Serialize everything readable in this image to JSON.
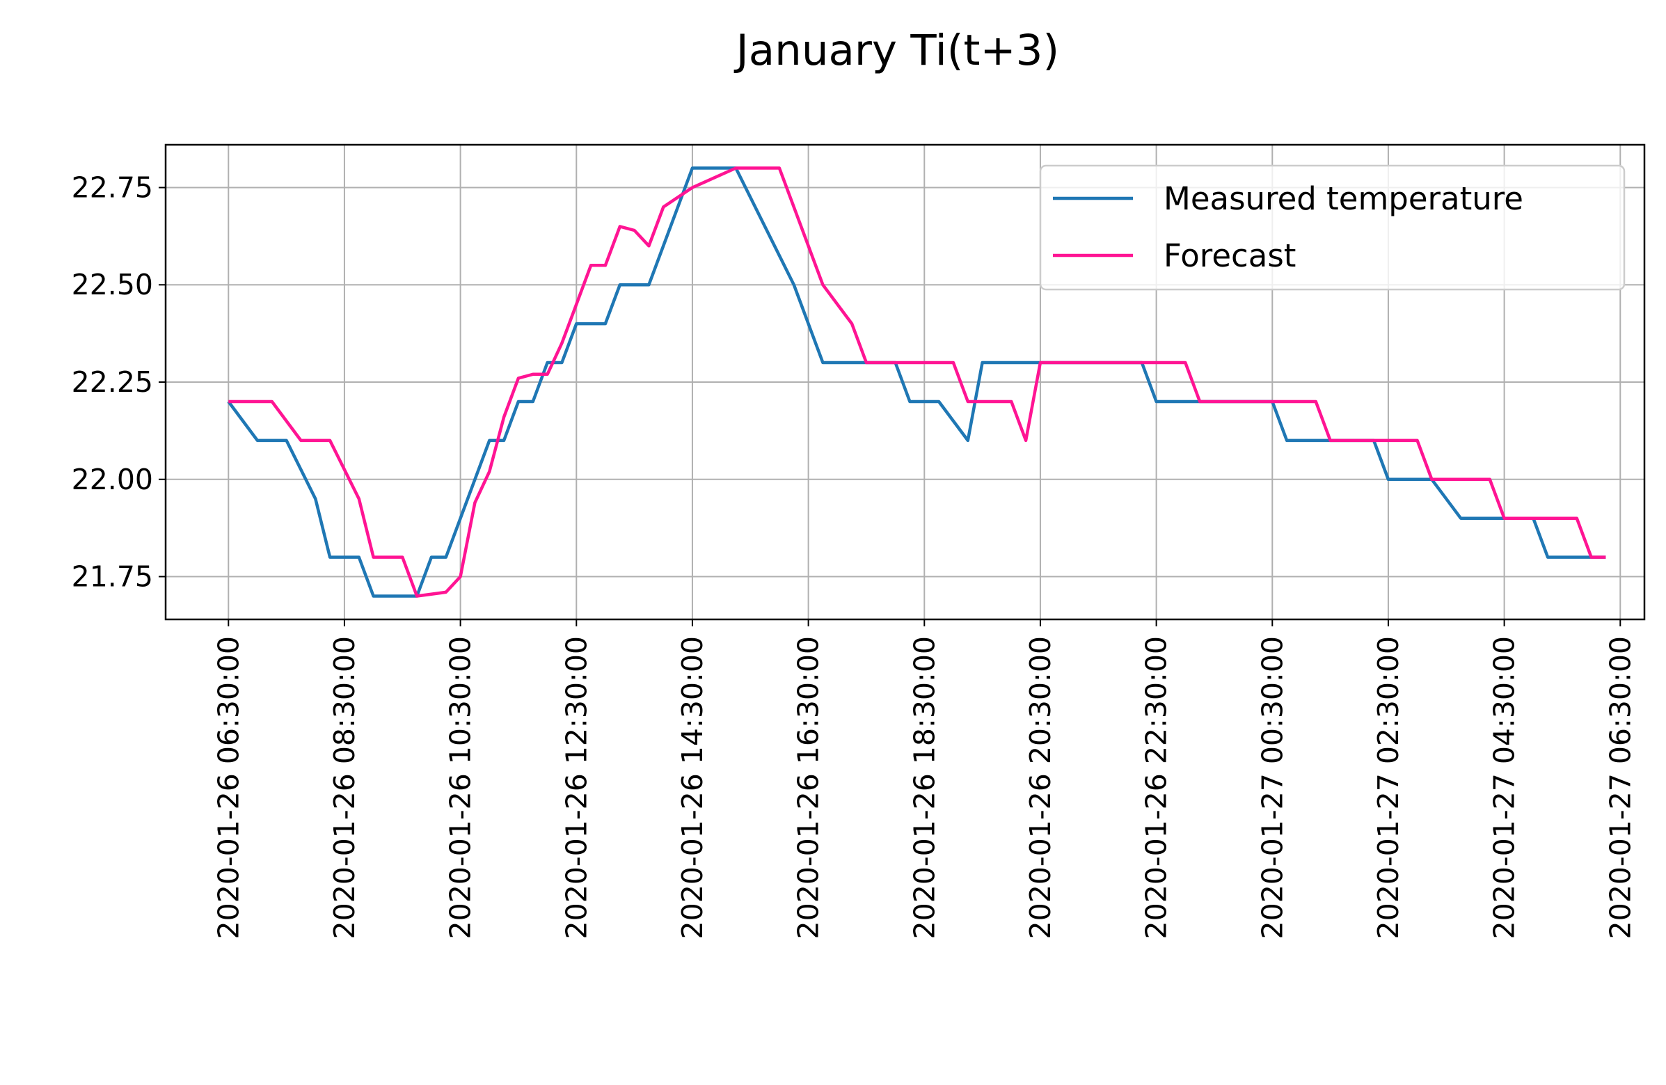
{
  "chart_data": {
    "type": "line",
    "title": "January Ti(t+3)",
    "xlabel": "",
    "ylabel": "",
    "ylim": [
      21.64,
      22.86
    ],
    "xlim": [
      "2020-01-26 05:25:00",
      "2020-01-27 06:55:00"
    ],
    "grid": true,
    "legend_position": "upper right",
    "y_ticks": [
      21.75,
      22.0,
      22.25,
      22.5,
      22.75
    ],
    "y_tick_labels": [
      "21.75",
      "22.00",
      "22.25",
      "22.50",
      "22.75"
    ],
    "x_ticks": [
      "2020-01-26 06:30:00",
      "2020-01-26 08:30:00",
      "2020-01-26 10:30:00",
      "2020-01-26 12:30:00",
      "2020-01-26 14:30:00",
      "2020-01-26 16:30:00",
      "2020-01-26 18:30:00",
      "2020-01-26 20:30:00",
      "2020-01-26 22:30:00",
      "2020-01-27 00:30:00",
      "2020-01-27 02:30:00",
      "2020-01-27 04:30:00",
      "2020-01-27 06:30:00"
    ],
    "series": [
      {
        "name": "Measured temperature",
        "color": "#1f77b4",
        "points": [
          [
            "2020-01-26 06:30:00",
            22.2
          ],
          [
            "2020-01-26 07:00:00",
            22.1
          ],
          [
            "2020-01-26 07:30:00",
            22.1
          ],
          [
            "2020-01-26 08:00:00",
            21.95
          ],
          [
            "2020-01-26 08:15:00",
            21.8
          ],
          [
            "2020-01-26 08:45:00",
            21.8
          ],
          [
            "2020-01-26 09:00:00",
            21.7
          ],
          [
            "2020-01-26 09:30:00",
            21.7
          ],
          [
            "2020-01-26 09:45:00",
            21.7
          ],
          [
            "2020-01-26 10:00:00",
            21.8
          ],
          [
            "2020-01-26 10:15:00",
            21.8
          ],
          [
            "2020-01-26 11:00:00",
            22.1
          ],
          [
            "2020-01-26 11:15:00",
            22.1
          ],
          [
            "2020-01-26 11:30:00",
            22.2
          ],
          [
            "2020-01-26 11:45:00",
            22.2
          ],
          [
            "2020-01-26 12:00:00",
            22.3
          ],
          [
            "2020-01-26 12:15:00",
            22.3
          ],
          [
            "2020-01-26 12:30:00",
            22.4
          ],
          [
            "2020-01-26 12:45:00",
            22.4
          ],
          [
            "2020-01-26 13:00:00",
            22.4
          ],
          [
            "2020-01-26 13:15:00",
            22.5
          ],
          [
            "2020-01-26 13:45:00",
            22.5
          ],
          [
            "2020-01-26 14:30:00",
            22.8
          ],
          [
            "2020-01-26 15:15:00",
            22.8
          ],
          [
            "2020-01-26 15:45:00",
            22.65
          ],
          [
            "2020-01-26 16:15:00",
            22.5
          ],
          [
            "2020-01-26 16:30:00",
            22.4
          ],
          [
            "2020-01-26 16:45:00",
            22.3
          ],
          [
            "2020-01-26 17:30:00",
            22.3
          ],
          [
            "2020-01-26 18:00:00",
            22.3
          ],
          [
            "2020-01-26 18:15:00",
            22.2
          ],
          [
            "2020-01-26 18:45:00",
            22.2
          ],
          [
            "2020-01-26 19:15:00",
            22.1
          ],
          [
            "2020-01-26 19:30:00",
            22.3
          ],
          [
            "2020-01-26 22:15:00",
            22.3
          ],
          [
            "2020-01-26 22:30:00",
            22.2
          ],
          [
            "2020-01-27 00:30:00",
            22.2
          ],
          [
            "2020-01-27 00:45:00",
            22.1
          ],
          [
            "2020-01-27 01:15:00",
            22.1
          ],
          [
            "2020-01-27 02:15:00",
            22.1
          ],
          [
            "2020-01-27 02:30:00",
            22.0
          ],
          [
            "2020-01-27 03:15:00",
            22.0
          ],
          [
            "2020-01-27 03:45:00",
            21.9
          ],
          [
            "2020-01-27 04:15:00",
            21.9
          ],
          [
            "2020-01-27 05:00:00",
            21.9
          ],
          [
            "2020-01-27 05:15:00",
            21.8
          ],
          [
            "2020-01-27 06:15:00",
            21.8
          ]
        ]
      },
      {
        "name": "Forecast",
        "color": "#ff1493",
        "points": [
          [
            "2020-01-26 06:30:00",
            22.2
          ],
          [
            "2020-01-26 07:15:00",
            22.2
          ],
          [
            "2020-01-26 07:45:00",
            22.1
          ],
          [
            "2020-01-26 08:15:00",
            22.1
          ],
          [
            "2020-01-26 08:45:00",
            21.95
          ],
          [
            "2020-01-26 09:00:00",
            21.8
          ],
          [
            "2020-01-26 09:30:00",
            21.8
          ],
          [
            "2020-01-26 09:45:00",
            21.7
          ],
          [
            "2020-01-26 10:15:00",
            21.71
          ],
          [
            "2020-01-26 10:30:00",
            21.75
          ],
          [
            "2020-01-26 10:45:00",
            21.94
          ],
          [
            "2020-01-26 11:00:00",
            22.02
          ],
          [
            "2020-01-26 11:15:00",
            22.16
          ],
          [
            "2020-01-26 11:30:00",
            22.26
          ],
          [
            "2020-01-26 11:45:00",
            22.27
          ],
          [
            "2020-01-26 12:00:00",
            22.27
          ],
          [
            "2020-01-26 12:15:00",
            22.35
          ],
          [
            "2020-01-26 12:30:00",
            22.45
          ],
          [
            "2020-01-26 12:45:00",
            22.55
          ],
          [
            "2020-01-26 13:00:00",
            22.55
          ],
          [
            "2020-01-26 13:15:00",
            22.65
          ],
          [
            "2020-01-26 13:30:00",
            22.64
          ],
          [
            "2020-01-26 13:45:00",
            22.6
          ],
          [
            "2020-01-26 14:00:00",
            22.7
          ],
          [
            "2020-01-26 14:30:00",
            22.75
          ],
          [
            "2020-01-26 15:15:00",
            22.8
          ],
          [
            "2020-01-26 16:00:00",
            22.8
          ],
          [
            "2020-01-26 16:30:00",
            22.6
          ],
          [
            "2020-01-26 16:45:00",
            22.5
          ],
          [
            "2020-01-26 17:15:00",
            22.4
          ],
          [
            "2020-01-26 17:30:00",
            22.3
          ],
          [
            "2020-01-26 19:00:00",
            22.3
          ],
          [
            "2020-01-26 19:15:00",
            22.2
          ],
          [
            "2020-01-26 20:00:00",
            22.2
          ],
          [
            "2020-01-26 20:15:00",
            22.1
          ],
          [
            "2020-01-26 20:30:00",
            22.3
          ],
          [
            "2020-01-26 23:00:00",
            22.3
          ],
          [
            "2020-01-26 23:15:00",
            22.2
          ],
          [
            "2020-01-27 01:15:00",
            22.2
          ],
          [
            "2020-01-27 01:30:00",
            22.1
          ],
          [
            "2020-01-27 03:00:00",
            22.1
          ],
          [
            "2020-01-27 03:15:00",
            22.0
          ],
          [
            "2020-01-27 04:15:00",
            22.0
          ],
          [
            "2020-01-27 04:30:00",
            21.9
          ],
          [
            "2020-01-27 05:45:00",
            21.9
          ],
          [
            "2020-01-27 06:00:00",
            21.8
          ],
          [
            "2020-01-27 06:15:00",
            21.8
          ]
        ]
      }
    ]
  }
}
